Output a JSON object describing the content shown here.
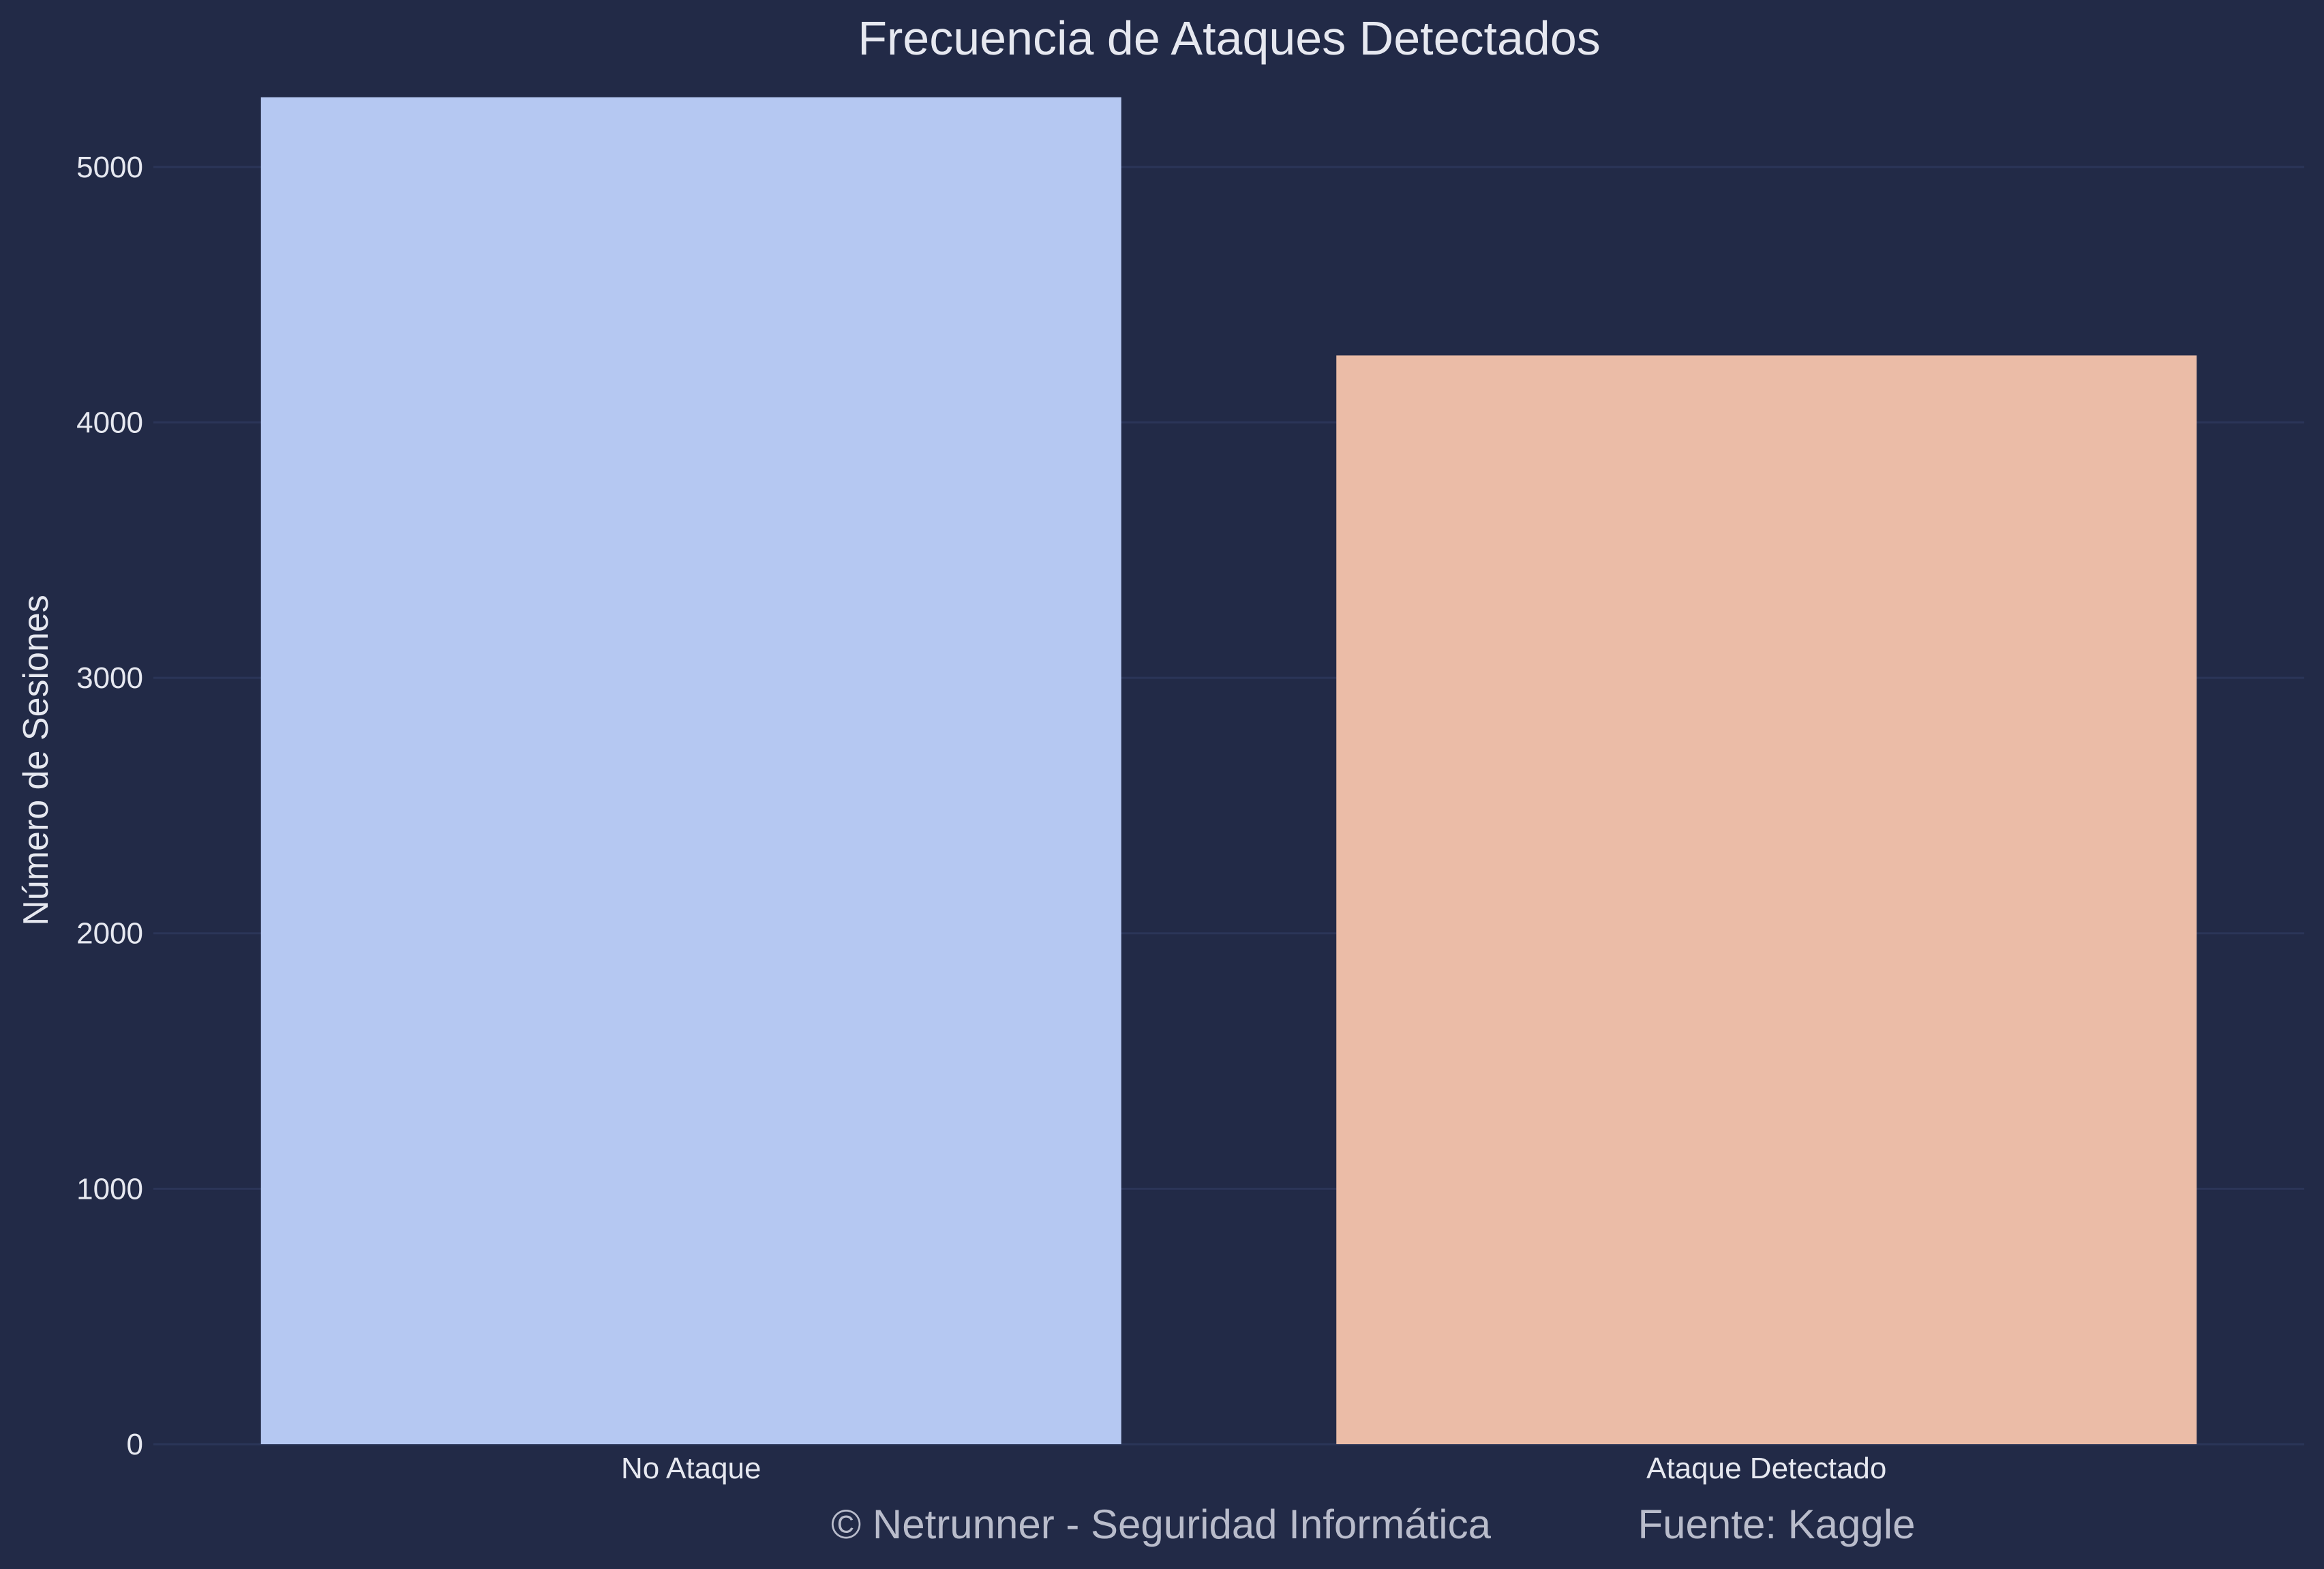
{
  "chart_data": {
    "type": "bar",
    "title": "Frecuencia de Ataques Detectados",
    "xlabel": "",
    "ylabel": "Número de Sesiones",
    "categories": [
      "No Ataque",
      "Ataque Detectado"
    ],
    "values": [
      5273,
      4262
    ],
    "ylim": [
      0,
      5400
    ],
    "yticks": [
      0,
      1000,
      2000,
      3000,
      4000,
      5000
    ],
    "grid": "horizontal",
    "bar_colors": [
      "#b5c8f2",
      "#ebbca7"
    ]
  },
  "footer": {
    "copyright": "© Netrunner - Seguridad Informática",
    "source": "Fuente: Kaggle"
  },
  "colors": {
    "background": "#222a47",
    "grid": "#2b3558",
    "text": "#e6e8f0",
    "footer_text": "#b9bccb"
  }
}
